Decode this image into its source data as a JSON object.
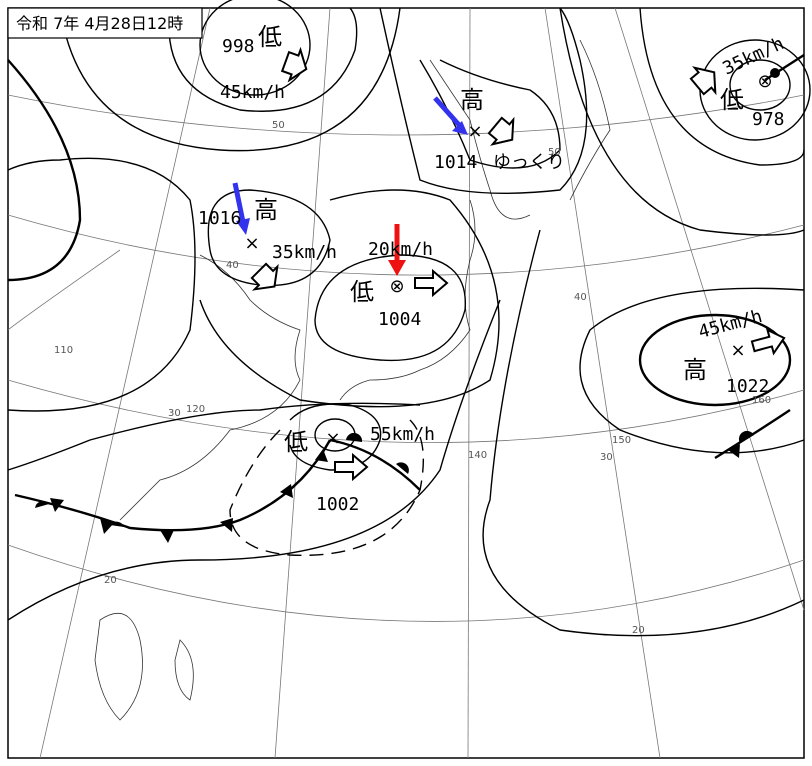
{
  "header": {
    "title": "令和 7年 4月28日12時"
  },
  "systems": [
    {
      "symbol": "低",
      "pressure": 998,
      "speed": "45km/h"
    },
    {
      "symbol": "高",
      "pressure": 1016,
      "speed": "35km/h"
    },
    {
      "symbol": "低",
      "pressure": 1004,
      "speed": "20km/h"
    },
    {
      "symbol": "高",
      "pressure": 1014,
      "movement": "ゆっくり"
    },
    {
      "symbol": "低",
      "pressure": 978,
      "speed": "35km/h"
    },
    {
      "symbol": "高",
      "pressure": 1022,
      "speed": "45km/h"
    },
    {
      "symbol": "低",
      "pressure": 1002,
      "speed": "55km/h"
    }
  ],
  "grid_labels": [
    50,
    50,
    40,
    40,
    30,
    30,
    20,
    20,
    110,
    120,
    140,
    150,
    160
  ]
}
